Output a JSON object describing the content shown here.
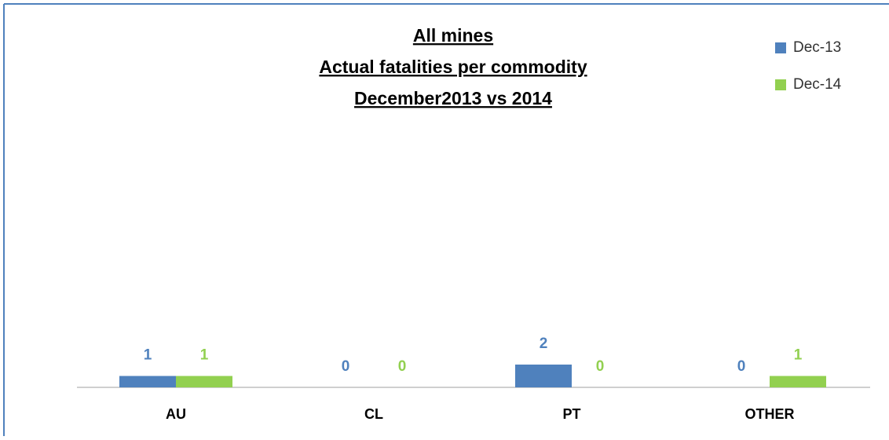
{
  "chart_data": {
    "type": "bar",
    "title_lines": [
      "All mines",
      "Actual fatalities per commodity",
      "December2013 vs 2014"
    ],
    "categories": [
      "AU",
      "CL",
      "PT",
      "OTHER"
    ],
    "series": [
      {
        "name": "Dec-13",
        "color": "#4f81bd",
        "values": [
          1,
          0,
          2,
          0
        ]
      },
      {
        "name": "Dec-14",
        "color": "#92d050",
        "values": [
          1,
          0,
          0,
          1
        ]
      }
    ],
    "ylim": [
      0,
      30
    ],
    "legend": "top-right"
  }
}
